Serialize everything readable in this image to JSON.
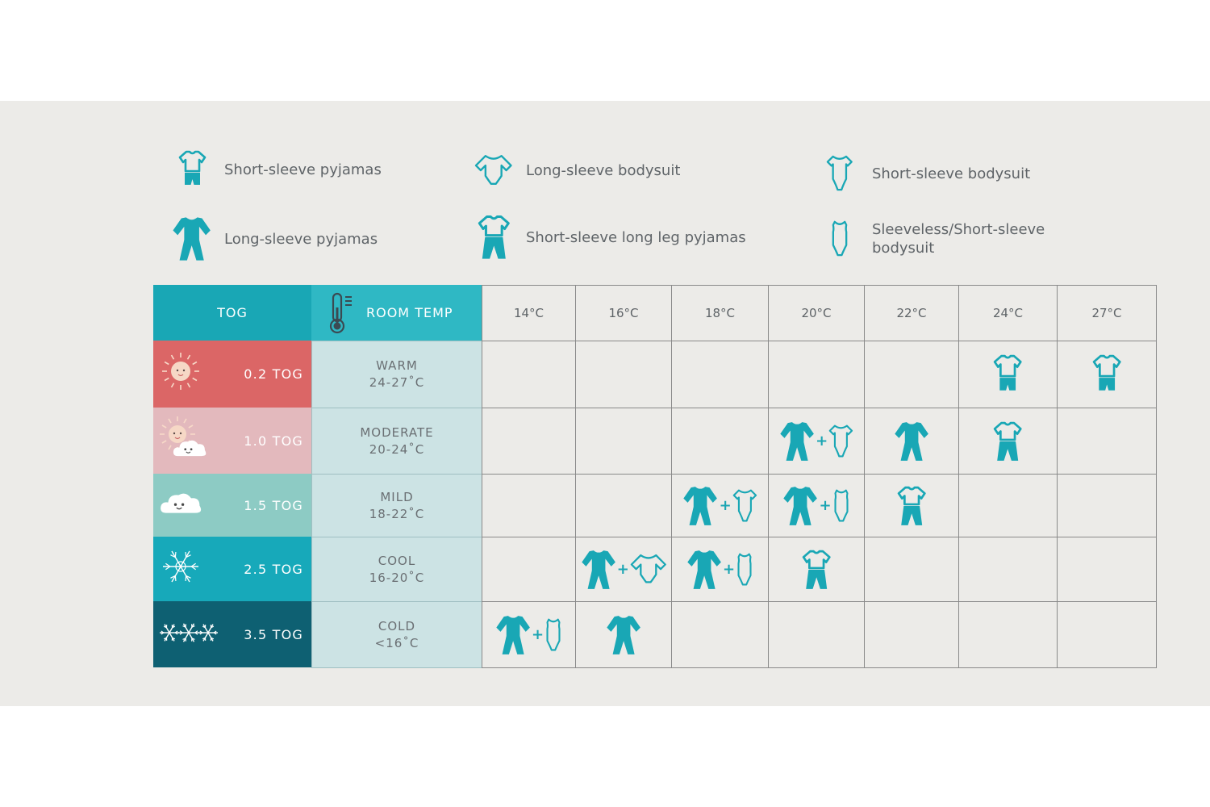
{
  "colors": {
    "teal": "#19a7b5",
    "teal_light": "#2fb8c4",
    "tog_02": "#db6666",
    "tog_10": "#e3b9bd",
    "tog_15": "#8dcbc4",
    "tog_25": "#17a9ba",
    "tog_35": "#0e6072",
    "room_bg": "#cce3e4"
  },
  "legend": [
    {
      "icon": "short-sleeve-pyjamas-icon",
      "label": "Short-sleeve pyjamas"
    },
    {
      "icon": "long-sleeve-bodysuit-icon",
      "label": "Long-sleeve bodysuit"
    },
    {
      "icon": "short-sleeve-bodysuit-icon",
      "label": "Short-sleeve bodysuit"
    },
    {
      "icon": "long-sleeve-pyjamas-icon",
      "label": "Long-sleeve pyjamas"
    },
    {
      "icon": "short-sleeve-long-leg-pyjamas-icon",
      "label": "Short-sleeve long leg pyjamas"
    },
    {
      "icon": "sleeveless-bodysuit-icon",
      "label": "Sleeveless/Short-sleeve bodysuit"
    }
  ],
  "header": {
    "tog": "TOG",
    "room_temp": "ROOM TEMP",
    "temps": [
      "14°C",
      "16°C",
      "18°C",
      "20°C",
      "22°C",
      "24°C",
      "27°C"
    ]
  },
  "rows": [
    {
      "tog": "0.2 TOG",
      "weather_icon": "sun-icon",
      "room_name": "WARM",
      "room_range": "24-27˚C"
    },
    {
      "tog": "1.0 TOG",
      "weather_icon": "sun-cloud-icon",
      "room_name": "MODERATE",
      "room_range": "20-24˚C"
    },
    {
      "tog": "1.5 TOG",
      "weather_icon": "cloud-icon",
      "room_name": "MILD",
      "room_range": "18-22˚C"
    },
    {
      "tog": "2.5 TOG",
      "weather_icon": "snowflake-icon",
      "room_name": "COOL",
      "room_range": "16-20˚C"
    },
    {
      "tog": "3.5 TOG",
      "weather_icon": "snowflakes-icon",
      "room_name": "COLD",
      "room_range": "<16˚C"
    }
  ],
  "grid": [
    [
      [],
      [],
      [],
      [],
      [],
      [
        "ssp"
      ],
      [
        "ssp"
      ]
    ],
    [
      [],
      [],
      [],
      [
        "lsp",
        "+",
        "ssb"
      ],
      [
        "lsp"
      ],
      [
        "ssll"
      ],
      []
    ],
    [
      [],
      [],
      [
        "lsp",
        "+",
        "ssb"
      ],
      [
        "lsp",
        "+",
        "slb"
      ],
      [
        "ssll"
      ],
      [],
      []
    ],
    [
      [],
      [
        "lsp",
        "+",
        "lsb"
      ],
      [
        "lsp",
        "+",
        "slb"
      ],
      [
        "ssll"
      ],
      [],
      [],
      []
    ],
    [
      [
        "lsp",
        "+",
        "slb"
      ],
      [
        "lsp"
      ],
      [],
      [],
      [],
      [],
      []
    ]
  ]
}
